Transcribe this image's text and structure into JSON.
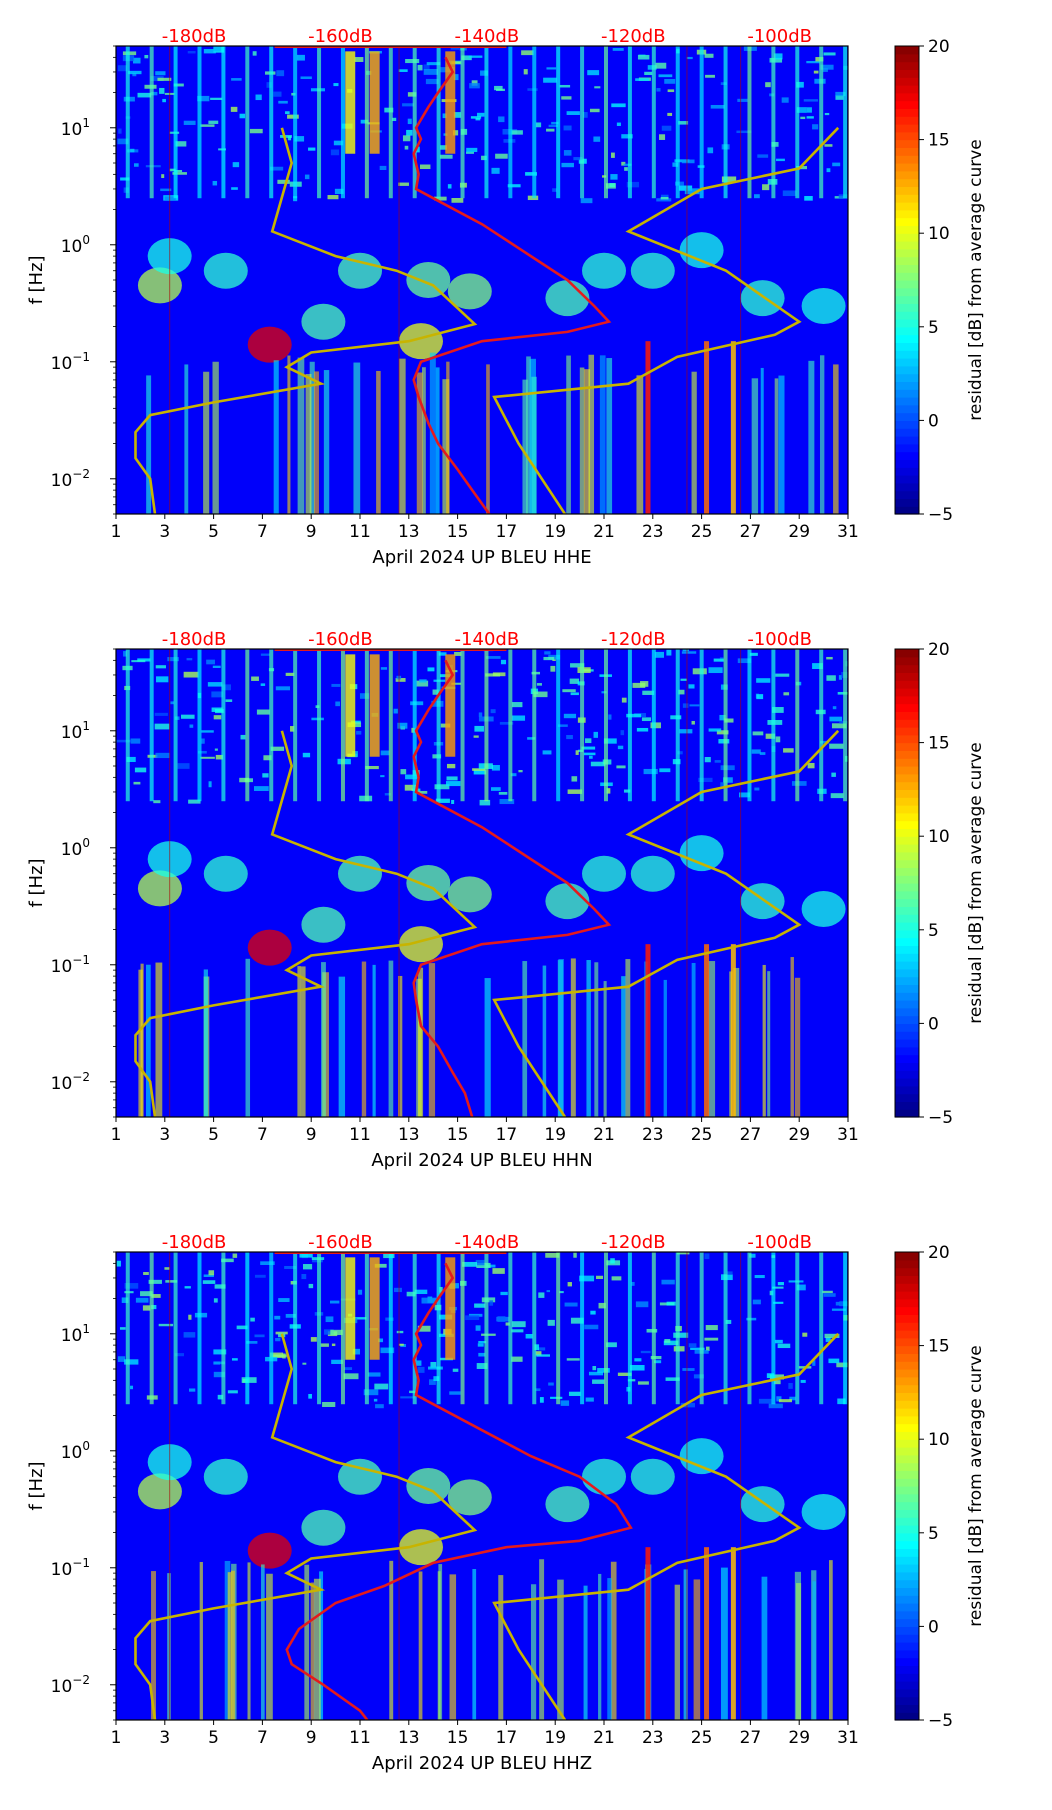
{
  "chart_data": [
    {
      "type": "heatmap",
      "component": "HHE",
      "xlabel": "April 2024 UP BLEU  HHE",
      "ylabel": "f [Hz]",
      "colorbar_label": "residual [dB] from average curve",
      "colormap": "jet",
      "xlim": [
        1,
        31
      ],
      "ylim": [
        0.005,
        50
      ],
      "y_scale": "log",
      "x_ticks": [
        1,
        3,
        5,
        7,
        9,
        11,
        13,
        15,
        17,
        19,
        21,
        23,
        25,
        27,
        29,
        31
      ],
      "y_ticks": [
        {
          "value": 0.01,
          "base": "10",
          "exp": "−2"
        },
        {
          "value": 0.1,
          "base": "10",
          "exp": "−1"
        },
        {
          "value": 1,
          "base": "10",
          "exp": "0"
        },
        {
          "value": 10,
          "base": "10",
          "exp": "1"
        }
      ],
      "top_axis_labels": [
        {
          "label": "-180dB",
          "x": 4.2
        },
        {
          "label": "-160dB",
          "x": 10.2
        },
        {
          "label": "-140dB",
          "x": 16.2
        },
        {
          "label": "-120dB",
          "x": 22.2
        },
        {
          "label": "-100dB",
          "x": 28.2
        }
      ],
      "colorbar_range": [
        -5,
        20
      ],
      "colorbar_ticks": [
        "−5",
        "0",
        "5",
        "10",
        "15",
        "20"
      ],
      "series": [
        {
          "name": "",
          "color": "#e41a1c",
          "points": [
            [
              14.5,
              40
            ],
            [
              14.8,
              30
            ],
            [
              14.2,
              20
            ],
            [
              13.8,
              15
            ],
            [
              13.3,
              10
            ],
            [
              13.5,
              8
            ],
            [
              13.2,
              6
            ],
            [
              13.4,
              4
            ],
            [
              13.3,
              3
            ],
            [
              14.0,
              2.5
            ],
            [
              16,
              1.5
            ],
            [
              18,
              0.8
            ],
            [
              19.5,
              0.5
            ],
            [
              20.6,
              0.3
            ],
            [
              21.2,
              0.22
            ],
            [
              19.5,
              0.18
            ],
            [
              16,
              0.15
            ],
            [
              13.5,
              0.1
            ],
            [
              13.2,
              0.07
            ],
            [
              13.4,
              0.05
            ],
            [
              13.8,
              0.03
            ],
            [
              14.2,
              0.02
            ],
            [
              15,
              0.012
            ],
            [
              15.6,
              0.008
            ],
            [
              16.3,
              0.005
            ]
          ]
        },
        {
          "name": "",
          "color": "#c8b400",
          "points": [
            [
              7.8,
              10
            ],
            [
              8.2,
              5
            ],
            [
              7.4,
              1.3
            ],
            [
              10,
              0.8
            ],
            [
              12.5,
              0.6
            ],
            [
              14,
              0.45
            ],
            [
              15.7,
              0.21
            ],
            [
              13,
              0.15
            ],
            [
              9,
              0.12
            ],
            [
              8,
              0.09
            ],
            [
              9.4,
              0.065
            ],
            [
              5,
              0.045
            ],
            [
              2.4,
              0.035
            ],
            [
              1.8,
              0.025
            ],
            [
              1.8,
              0.015
            ],
            [
              2.4,
              0.01
            ],
            [
              2.6,
              0.005
            ]
          ]
        },
        {
          "name": "",
          "color": "#c8b400",
          "points": [
            [
              30.6,
              10
            ],
            [
              29,
              4.5
            ],
            [
              25,
              3
            ],
            [
              22,
              1.3
            ],
            [
              26,
              0.6
            ],
            [
              29,
              0.22
            ],
            [
              28,
              0.17
            ],
            [
              24,
              0.11
            ],
            [
              22,
              0.065
            ],
            [
              16.5,
              0.05
            ],
            [
              17.5,
              0.02
            ],
            [
              19.4,
              0.005
            ]
          ]
        }
      ]
    },
    {
      "type": "heatmap",
      "component": "HHN",
      "xlabel": "April 2024 UP BLEU  HHN",
      "ylabel": "f [Hz]",
      "colorbar_label": "residual [dB] from average curve",
      "colormap": "jet",
      "xlim": [
        1,
        31
      ],
      "ylim": [
        0.005,
        50
      ],
      "y_scale": "log",
      "x_ticks": [
        1,
        3,
        5,
        7,
        9,
        11,
        13,
        15,
        17,
        19,
        21,
        23,
        25,
        27,
        29,
        31
      ],
      "y_ticks": [
        {
          "value": 0.01,
          "base": "10",
          "exp": "−2"
        },
        {
          "value": 0.1,
          "base": "10",
          "exp": "−1"
        },
        {
          "value": 1,
          "base": "10",
          "exp": "0"
        },
        {
          "value": 10,
          "base": "10",
          "exp": "1"
        }
      ],
      "top_axis_labels": [
        {
          "label": "-180dB",
          "x": 4.2
        },
        {
          "label": "-160dB",
          "x": 10.2
        },
        {
          "label": "-140dB",
          "x": 16.2
        },
        {
          "label": "-120dB",
          "x": 22.2
        },
        {
          "label": "-100dB",
          "x": 28.2
        }
      ],
      "colorbar_range": [
        -5,
        20
      ],
      "colorbar_ticks": [
        "−5",
        "0",
        "5",
        "10",
        "15",
        "20"
      ],
      "series": [
        {
          "name": "",
          "color": "#e41a1c",
          "points": [
            [
              14.5,
              40
            ],
            [
              14.8,
              30
            ],
            [
              14.2,
              20
            ],
            [
              13.8,
              15
            ],
            [
              13.3,
              10
            ],
            [
              13.5,
              8
            ],
            [
              13.2,
              6
            ],
            [
              13.4,
              4
            ],
            [
              13.3,
              3
            ],
            [
              14.0,
              2.5
            ],
            [
              16,
              1.5
            ],
            [
              18,
              0.8
            ],
            [
              19.5,
              0.5
            ],
            [
              20.6,
              0.3
            ],
            [
              21.2,
              0.22
            ],
            [
              19.5,
              0.18
            ],
            [
              16,
              0.15
            ],
            [
              13.5,
              0.1
            ],
            [
              13.2,
              0.07
            ],
            [
              13.3,
              0.05
            ],
            [
              13.5,
              0.03
            ],
            [
              14.2,
              0.02
            ],
            [
              14.8,
              0.012
            ],
            [
              15.3,
              0.008
            ],
            [
              15.6,
              0.005
            ]
          ]
        },
        {
          "name": "",
          "color": "#c8b400",
          "points": [
            [
              7.8,
              10
            ],
            [
              8.2,
              5
            ],
            [
              7.4,
              1.3
            ],
            [
              10,
              0.8
            ],
            [
              12.5,
              0.6
            ],
            [
              14,
              0.45
            ],
            [
              15.7,
              0.21
            ],
            [
              13,
              0.15
            ],
            [
              9,
              0.12
            ],
            [
              8,
              0.09
            ],
            [
              9.4,
              0.065
            ],
            [
              5,
              0.045
            ],
            [
              2.4,
              0.035
            ],
            [
              1.8,
              0.025
            ],
            [
              1.8,
              0.015
            ],
            [
              2.4,
              0.01
            ],
            [
              2.6,
              0.005
            ]
          ]
        },
        {
          "name": "",
          "color": "#c8b400",
          "points": [
            [
              30.6,
              10
            ],
            [
              29,
              4.5
            ],
            [
              25,
              3
            ],
            [
              22,
              1.3
            ],
            [
              26,
              0.6
            ],
            [
              29,
              0.22
            ],
            [
              28,
              0.17
            ],
            [
              24,
              0.11
            ],
            [
              22,
              0.065
            ],
            [
              16.5,
              0.05
            ],
            [
              17.5,
              0.02
            ],
            [
              19.4,
              0.005
            ]
          ]
        }
      ]
    },
    {
      "type": "heatmap",
      "component": "HHZ",
      "xlabel": "April 2024 UP BLEU  HHZ",
      "ylabel": "f [Hz]",
      "colorbar_label": "residual [dB] from average curve",
      "colormap": "jet",
      "xlim": [
        1,
        31
      ],
      "ylim": [
        0.005,
        50
      ],
      "y_scale": "log",
      "x_ticks": [
        1,
        3,
        5,
        7,
        9,
        11,
        13,
        15,
        17,
        19,
        21,
        23,
        25,
        27,
        29,
        31
      ],
      "y_ticks": [
        {
          "value": 0.01,
          "base": "10",
          "exp": "−2"
        },
        {
          "value": 0.1,
          "base": "10",
          "exp": "−1"
        },
        {
          "value": 1,
          "base": "10",
          "exp": "0"
        },
        {
          "value": 10,
          "base": "10",
          "exp": "1"
        }
      ],
      "top_axis_labels": [
        {
          "label": "-180dB",
          "x": 4.2
        },
        {
          "label": "-160dB",
          "x": 10.2
        },
        {
          "label": "-140dB",
          "x": 16.2
        },
        {
          "label": "-120dB",
          "x": 22.2
        },
        {
          "label": "-100dB",
          "x": 28.2
        }
      ],
      "colorbar_range": [
        -5,
        20
      ],
      "colorbar_ticks": [
        "−5",
        "0",
        "5",
        "10",
        "15",
        "20"
      ],
      "series": [
        {
          "name": "",
          "color": "#e41a1c",
          "points": [
            [
              14.5,
              40
            ],
            [
              14.8,
              30
            ],
            [
              14.2,
              20
            ],
            [
              13.8,
              15
            ],
            [
              13.3,
              10
            ],
            [
              13.5,
              8
            ],
            [
              13.2,
              6
            ],
            [
              13.4,
              4
            ],
            [
              13.3,
              3
            ],
            [
              14.0,
              2.5
            ],
            [
              16,
              1.5
            ],
            [
              18,
              0.9
            ],
            [
              20,
              0.6
            ],
            [
              21.5,
              0.35
            ],
            [
              22.1,
              0.22
            ],
            [
              20,
              0.17
            ],
            [
              17,
              0.15
            ],
            [
              14,
              0.11
            ],
            [
              12,
              0.07
            ],
            [
              10,
              0.05
            ],
            [
              8.5,
              0.03
            ],
            [
              8,
              0.02
            ],
            [
              8.2,
              0.015
            ],
            [
              9.5,
              0.01
            ],
            [
              11,
              0.006
            ],
            [
              11.3,
              0.005
            ]
          ]
        },
        {
          "name": "",
          "color": "#c8b400",
          "points": [
            [
              7.8,
              10
            ],
            [
              8.2,
              5
            ],
            [
              7.4,
              1.3
            ],
            [
              10,
              0.8
            ],
            [
              12.5,
              0.6
            ],
            [
              14,
              0.45
            ],
            [
              15.7,
              0.21
            ],
            [
              13,
              0.15
            ],
            [
              9,
              0.12
            ],
            [
              8,
              0.09
            ],
            [
              9.4,
              0.065
            ],
            [
              5,
              0.045
            ],
            [
              2.4,
              0.035
            ],
            [
              1.8,
              0.025
            ],
            [
              1.8,
              0.015
            ],
            [
              2.4,
              0.01
            ],
            [
              2.6,
              0.005
            ]
          ]
        },
        {
          "name": "",
          "color": "#c8b400",
          "points": [
            [
              30.6,
              10
            ],
            [
              29,
              4.5
            ],
            [
              25,
              3
            ],
            [
              22,
              1.3
            ],
            [
              26,
              0.6
            ],
            [
              29,
              0.22
            ],
            [
              28,
              0.17
            ],
            [
              24,
              0.11
            ],
            [
              22,
              0.065
            ],
            [
              16.5,
              0.05
            ],
            [
              17.5,
              0.02
            ],
            [
              19.4,
              0.005
            ]
          ]
        }
      ]
    }
  ]
}
